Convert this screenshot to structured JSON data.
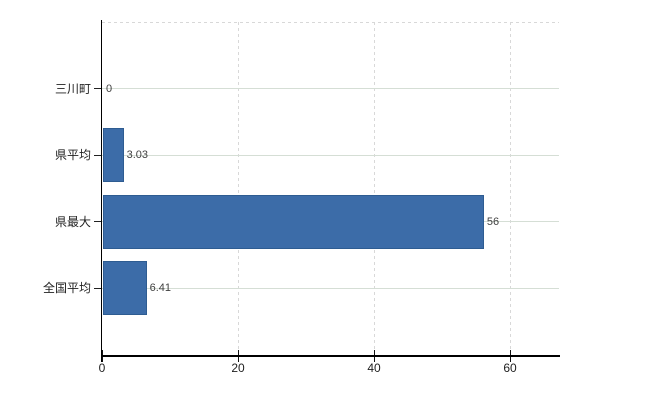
{
  "chart_data": {
    "type": "bar",
    "orientation": "horizontal",
    "title": "",
    "xlabel": "",
    "ylabel": "",
    "categories": [
      "三川町",
      "県平均",
      "県最大",
      "全国平均"
    ],
    "values": [
      0,
      3.03,
      56,
      6.41
    ],
    "value_labels": [
      "0",
      "3.03",
      "56",
      "6.41"
    ],
    "x_ticks": [
      0,
      20,
      40,
      60
    ],
    "x_tick_labels": [
      "0",
      "20",
      "40",
      "60"
    ],
    "xlim": [
      0,
      67.2
    ],
    "legend": "none",
    "grid": {
      "horizontal": "solid",
      "vertical": "dashed",
      "top_border": "dashed"
    },
    "colors": {
      "background": "#ffffff",
      "bar": "#3c6ca8",
      "bar_border": "#2e5c91",
      "h_gridline": "#d5ded5",
      "v_gridline": "#d8d8d8",
      "axis": "#000000",
      "tick_label": "#1f1f1f",
      "value_label": "#3f3f3f"
    }
  }
}
